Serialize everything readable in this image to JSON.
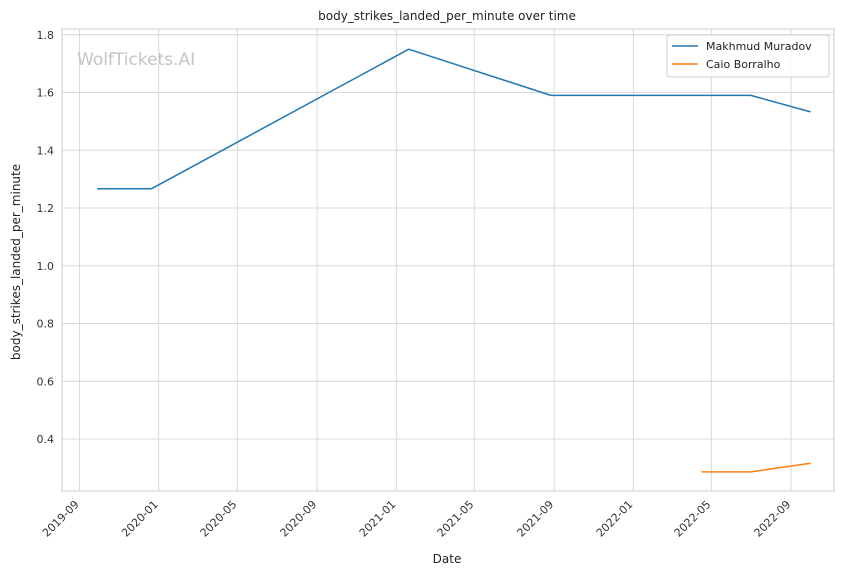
{
  "chart_data": {
    "type": "line",
    "title": "body_strikes_landed_per_minute over time",
    "xlabel": "Date",
    "ylabel": "body_strikes_landed_per_minute",
    "watermark": "WolfTickets.AI",
    "xlim": [
      "2019-08-05",
      "2022-11-06"
    ],
    "ylim": [
      0.22,
      1.82
    ],
    "x_ticks": [
      "2019-09",
      "2020-01",
      "2020-05",
      "2020-09",
      "2021-01",
      "2021-05",
      "2021-09",
      "2022-01",
      "2022-05",
      "2022-09"
    ],
    "y_ticks": [
      0.4,
      0.6,
      0.8,
      1.0,
      1.2,
      1.4,
      1.6,
      1.8
    ],
    "grid": true,
    "legend_position": "top-right",
    "series": [
      {
        "name": "Makhmud Muradov",
        "color": "#1f77b4",
        "points": [
          {
            "x": "2019-09-28",
            "y": 1.267
          },
          {
            "x": "2019-12-21",
            "y": 1.267
          },
          {
            "x": "2021-01-20",
            "y": 1.75
          },
          {
            "x": "2021-08-27",
            "y": 1.59
          },
          {
            "x": "2022-07-01",
            "y": 1.59
          },
          {
            "x": "2022-10-01",
            "y": 1.533
          }
        ]
      },
      {
        "name": "Caio Borralho",
        "color": "#ff7f0e",
        "points": [
          {
            "x": "2022-04-16",
            "y": 0.286
          },
          {
            "x": "2022-07-01",
            "y": 0.286
          },
          {
            "x": "2022-10-01",
            "y": 0.316
          }
        ]
      }
    ]
  }
}
